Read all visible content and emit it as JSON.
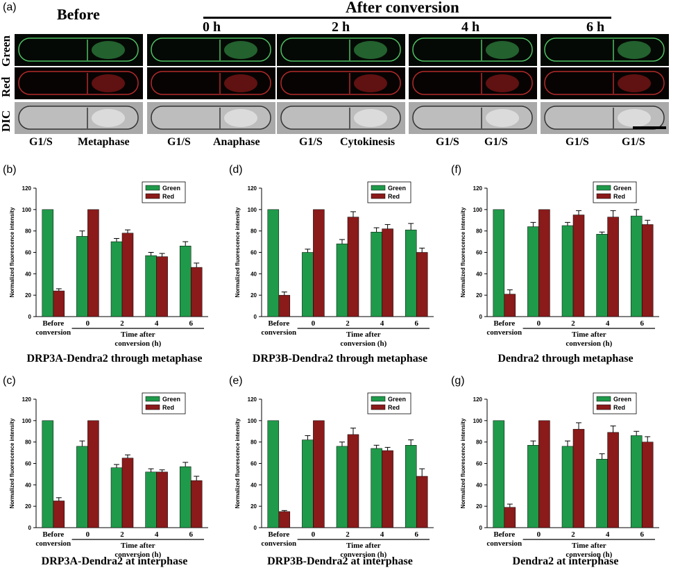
{
  "figure": {
    "panel_a": {
      "letter": "(a)",
      "before": "Before",
      "after": "After conversion",
      "times": [
        "0 h",
        "2 h",
        "4 h",
        "6 h"
      ],
      "rows": [
        "Green",
        "Red",
        "DIC"
      ],
      "stages": [
        [
          "G1/S",
          "Metaphase"
        ],
        [
          "G1/S",
          "Anaphase"
        ],
        [
          "G1/S",
          "Cytokinesis"
        ],
        [
          "G1/S",
          "G1/S"
        ],
        [
          "G1/S",
          "G1/S"
        ]
      ]
    },
    "panels": [
      {
        "letter": "(b)",
        "title": "DRP3A-Dendra2 through metaphase"
      },
      {
        "letter": "(c)",
        "title": "DRP3A-Dendra2 at interphase"
      },
      {
        "letter": "(d)",
        "title": "DRP3B-Dendra2 through metaphase"
      },
      {
        "letter": "(e)",
        "title": "DRP3B-Dendra2 at interphase"
      },
      {
        "letter": "(f)",
        "title": "Dendra2 through metaphase"
      },
      {
        "letter": "(g)",
        "title": "Dendra2 at interphase"
      }
    ]
  },
  "chart_data": [
    {
      "id": "b",
      "type": "bar",
      "categories": [
        "Before conversion",
        "0",
        "2",
        "4",
        "6"
      ],
      "series": [
        {
          "name": "Green",
          "values": [
            100,
            75,
            70,
            57,
            66
          ],
          "errors": [
            0,
            5,
            3,
            3,
            4
          ]
        },
        {
          "name": "Red",
          "values": [
            24,
            100,
            78,
            56,
            46
          ],
          "errors": [
            2,
            0,
            3,
            3,
            4
          ]
        }
      ],
      "ylabel": "Normalized fluorescence intensity",
      "xlabel": "Time after conversion (h)",
      "first_label": [
        "Before",
        "conversion"
      ],
      "xlabel_lines": [
        "Time after",
        "conversion (h)"
      ],
      "ylim": [
        0,
        120
      ],
      "yticks": [
        0,
        20,
        40,
        60,
        80,
        100,
        120
      ],
      "legend": "top-right",
      "colors": {
        "Green": "#1f9a4a",
        "Red": "#8b1a1a"
      }
    },
    {
      "id": "c",
      "type": "bar",
      "categories": [
        "Before conversion",
        "0",
        "2",
        "4",
        "6"
      ],
      "series": [
        {
          "name": "Green",
          "values": [
            100,
            76,
            56,
            52,
            57
          ],
          "errors": [
            0,
            5,
            3,
            3,
            4
          ]
        },
        {
          "name": "Red",
          "values": [
            25,
            100,
            65,
            52,
            44
          ],
          "errors": [
            3,
            0,
            3,
            2,
            4
          ]
        }
      ],
      "ylabel": "Normalized fluorescence intensity",
      "xlabel": "Time after conversion (h)",
      "first_label": [
        "Before",
        "conversion"
      ],
      "xlabel_lines": [
        "Time after",
        "conversion (h)"
      ],
      "ylim": [
        0,
        120
      ],
      "yticks": [
        0,
        20,
        40,
        60,
        80,
        100,
        120
      ],
      "legend": "top-right",
      "colors": {
        "Green": "#1f9a4a",
        "Red": "#8b1a1a"
      }
    },
    {
      "id": "d",
      "type": "bar",
      "categories": [
        "Before conversion",
        "0",
        "2",
        "4",
        "6"
      ],
      "series": [
        {
          "name": "Green",
          "values": [
            100,
            60,
            68,
            79,
            81
          ],
          "errors": [
            0,
            3,
            4,
            4,
            6
          ]
        },
        {
          "name": "Red",
          "values": [
            20,
            100,
            93,
            82,
            60
          ],
          "errors": [
            3,
            0,
            5,
            4,
            4
          ]
        }
      ],
      "ylabel": "Normalized fluorescence intensity",
      "xlabel": "Time after conversion (h)",
      "first_label": [
        "Before",
        "conversion"
      ],
      "xlabel_lines": [
        "Time after",
        "conversion (h)"
      ],
      "ylim": [
        0,
        120
      ],
      "yticks": [
        0,
        20,
        40,
        60,
        80,
        100,
        120
      ],
      "legend": "top-right",
      "colors": {
        "Green": "#1f9a4a",
        "Red": "#8b1a1a"
      }
    },
    {
      "id": "e",
      "type": "bar",
      "categories": [
        "Before conversion",
        "0",
        "2",
        "4",
        "6"
      ],
      "series": [
        {
          "name": "Green",
          "values": [
            100,
            82,
            76,
            74,
            77
          ],
          "errors": [
            0,
            4,
            4,
            3,
            5
          ]
        },
        {
          "name": "Red",
          "values": [
            15,
            100,
            87,
            72,
            48
          ],
          "errors": [
            1,
            0,
            6,
            3,
            7
          ]
        }
      ],
      "ylabel": "Normalized fluorescence intensity",
      "xlabel": "Time after conversion (h)",
      "first_label": [
        "Before",
        "conversion"
      ],
      "xlabel_lines": [
        "Time after",
        "conversion (h)"
      ],
      "ylim": [
        0,
        120
      ],
      "yticks": [
        0,
        20,
        40,
        60,
        80,
        100,
        120
      ],
      "legend": "top-right",
      "colors": {
        "Green": "#1f9a4a",
        "Red": "#8b1a1a"
      }
    },
    {
      "id": "f",
      "type": "bar",
      "categories": [
        "Before conversion",
        "0",
        "2",
        "4",
        "6"
      ],
      "series": [
        {
          "name": "Green",
          "values": [
            100,
            84,
            85,
            77,
            94
          ],
          "errors": [
            0,
            4,
            3,
            2,
            6
          ]
        },
        {
          "name": "Red",
          "values": [
            21,
            100,
            95,
            93,
            86
          ],
          "errors": [
            4,
            0,
            4,
            6,
            4
          ]
        }
      ],
      "ylabel": "Normalized fluorescence intensity",
      "xlabel": "Time after conversion (h)",
      "first_label": [
        "Before",
        "conversion"
      ],
      "xlabel_lines": [
        "Time after",
        "conversion (h)"
      ],
      "ylim": [
        0,
        120
      ],
      "yticks": [
        0,
        20,
        40,
        60,
        80,
        100,
        120
      ],
      "legend": "top-right",
      "colors": {
        "Green": "#1f9a4a",
        "Red": "#8b1a1a"
      }
    },
    {
      "id": "g",
      "type": "bar",
      "categories": [
        "Before conversion",
        "0",
        "2",
        "4",
        "6"
      ],
      "series": [
        {
          "name": "Green",
          "values": [
            100,
            77,
            76,
            64,
            86
          ],
          "errors": [
            0,
            4,
            5,
            5,
            4
          ]
        },
        {
          "name": "Red",
          "values": [
            19,
            100,
            92,
            89,
            80
          ],
          "errors": [
            3,
            0,
            6,
            6,
            5
          ]
        }
      ],
      "ylabel": "Normalized fluorescence intensity",
      "xlabel": "Time after conversion (h)",
      "first_label": [
        "Before",
        "conversion"
      ],
      "xlabel_lines": [
        "Time after",
        "conversion (h)"
      ],
      "ylim": [
        0,
        120
      ],
      "yticks": [
        0,
        20,
        40,
        60,
        80,
        100,
        120
      ],
      "legend": "top-right",
      "colors": {
        "Green": "#1f9a4a",
        "Red": "#8b1a1a"
      }
    }
  ]
}
